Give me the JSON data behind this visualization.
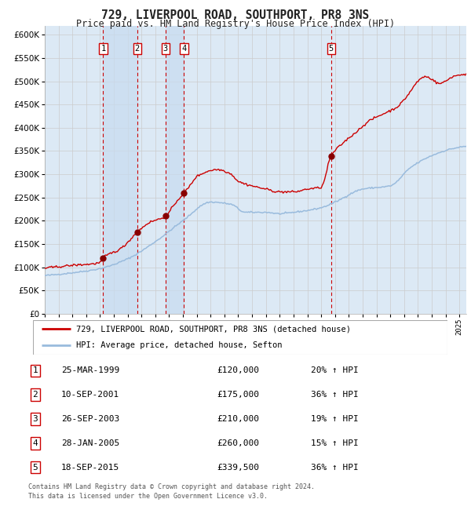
{
  "title": "729, LIVERPOOL ROAD, SOUTHPORT, PR8 3NS",
  "subtitle": "Price paid vs. HM Land Registry's House Price Index (HPI)",
  "ylim": [
    0,
    620000
  ],
  "yticks": [
    0,
    50000,
    100000,
    150000,
    200000,
    250000,
    300000,
    350000,
    400000,
    450000,
    500000,
    550000,
    600000
  ],
  "xlim_start": 1995.0,
  "xlim_end": 2025.5,
  "grid_color": "#cccccc",
  "bg_color": "#dce9f5",
  "plot_bg": "#ffffff",
  "red_line_color": "#cc0000",
  "blue_line_color": "#99bbdd",
  "sale_color": "#880000",
  "vline_color": "#cc0000",
  "transactions": [
    {
      "num": 1,
      "date_dec": 1999.23,
      "price": 120000,
      "label": "1"
    },
    {
      "num": 2,
      "date_dec": 2001.69,
      "price": 175000,
      "label": "2"
    },
    {
      "num": 3,
      "date_dec": 2003.74,
      "price": 210000,
      "label": "3"
    },
    {
      "num": 4,
      "date_dec": 2005.08,
      "price": 260000,
      "label": "4"
    },
    {
      "num": 5,
      "date_dec": 2015.72,
      "price": 339500,
      "label": "5"
    }
  ],
  "legend_line1": "729, LIVERPOOL ROAD, SOUTHPORT, PR8 3NS (detached house)",
  "legend_line2": "HPI: Average price, detached house, Sefton",
  "table_rows": [
    {
      "num": "1",
      "date": "25-MAR-1999",
      "price": "£120,000",
      "change": "20% ↑ HPI"
    },
    {
      "num": "2",
      "date": "10-SEP-2001",
      "price": "£175,000",
      "change": "36% ↑ HPI"
    },
    {
      "num": "3",
      "date": "26-SEP-2003",
      "price": "£210,000",
      "change": "19% ↑ HPI"
    },
    {
      "num": "4",
      "date": "28-JAN-2005",
      "price": "£260,000",
      "change": "15% ↑ HPI"
    },
    {
      "num": "5",
      "date": "18-SEP-2015",
      "price": "£339,500",
      "change": "36% ↑ HPI"
    }
  ],
  "footnote": "Contains HM Land Registry data © Crown copyright and database right 2024.\nThis data is licensed under the Open Government Licence v3.0."
}
